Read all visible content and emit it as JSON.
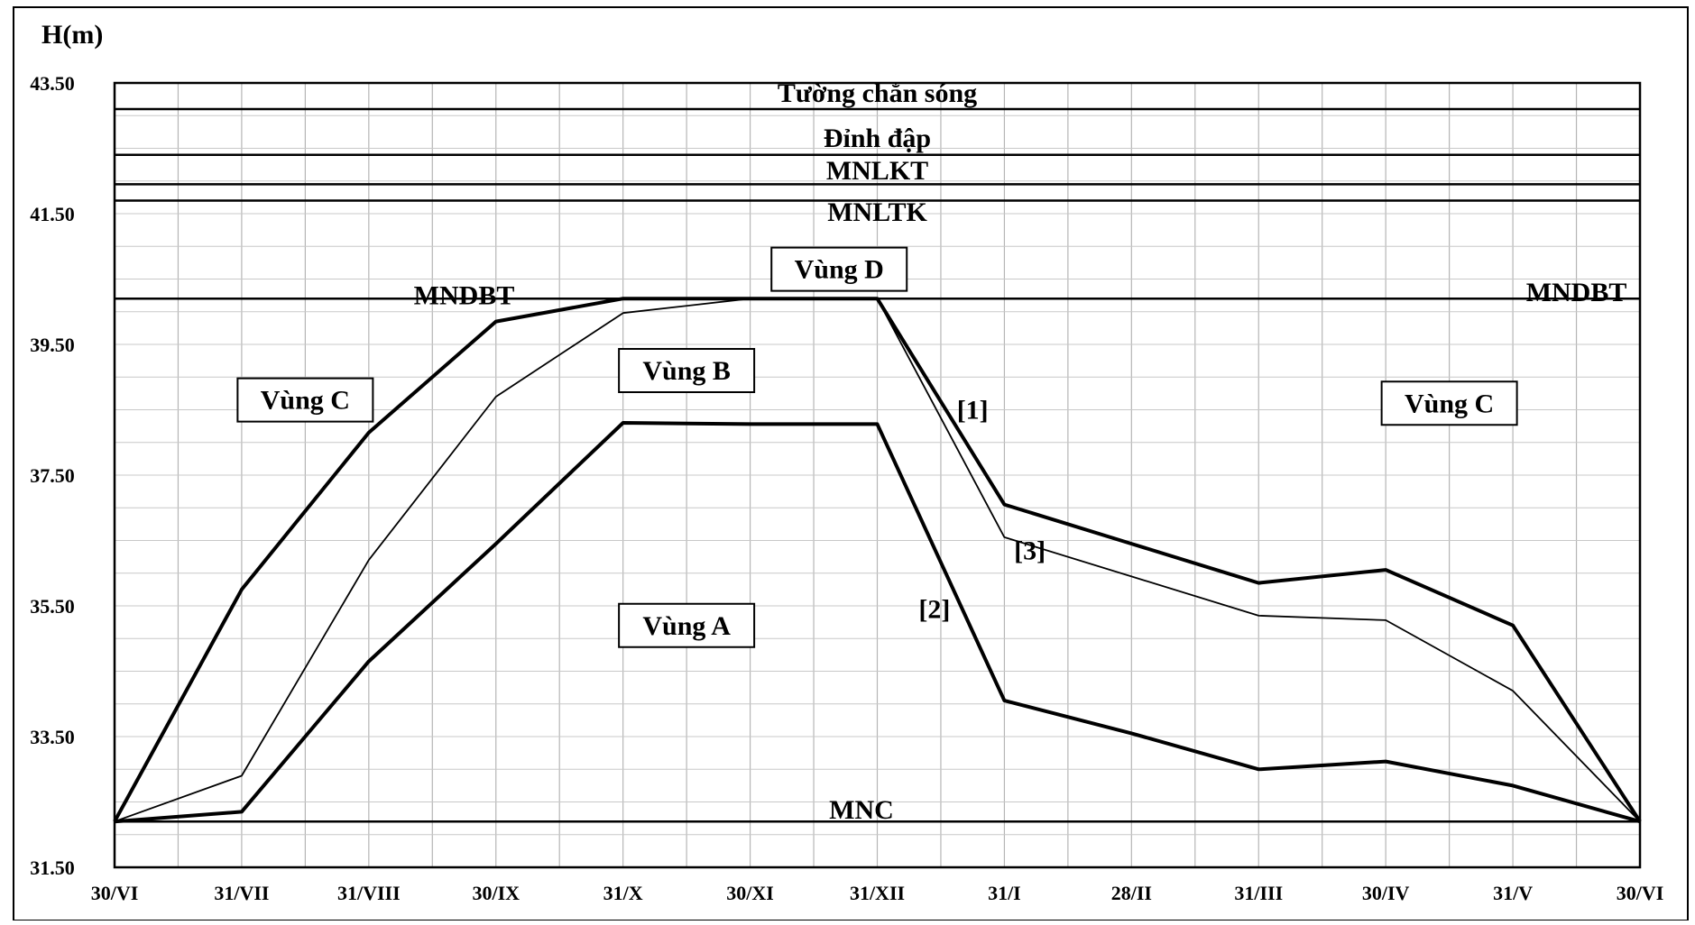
{
  "chart_data": {
    "type": "line",
    "title": "",
    "ylabel": "H(m)",
    "xlabel": "",
    "ylim": [
      31.5,
      43.5
    ],
    "yticks": [
      "43.50",
      "41.50",
      "39.50",
      "37.50",
      "35.50",
      "33.50",
      "31.50"
    ],
    "ytick_values": [
      43.5,
      41.5,
      39.5,
      37.5,
      35.5,
      33.5,
      31.5
    ],
    "categories": [
      "30/VI",
      "31/VII",
      "31/VIII",
      "30/IX",
      "31/X",
      "30/XI",
      "31/XII",
      "31/I",
      "28/II",
      "31/III",
      "30/IV",
      "31/V",
      "30/VI"
    ],
    "grid": true,
    "levels": [
      {
        "label": "Tường chắn sóng",
        "value": 43.1
      },
      {
        "label": "Đỉnh đập",
        "value": 42.4
      },
      {
        "label": "MNLKT",
        "value": 41.95
      },
      {
        "label": "MNLTK",
        "value": 41.7
      },
      {
        "label": "MNDBT",
        "value": 40.2
      },
      {
        "label": "MNC",
        "value": 32.2
      }
    ],
    "series": [
      {
        "name": "[1]",
        "style": "thick",
        "values": [
          32.2,
          35.75,
          38.15,
          39.85,
          40.2,
          40.2,
          40.2,
          37.05,
          36.45,
          35.85,
          36.05,
          35.2,
          32.2
        ]
      },
      {
        "name": "[3]",
        "style": "thin",
        "values": [
          32.2,
          32.9,
          36.2,
          38.7,
          39.98,
          40.2,
          40.2,
          36.55,
          35.95,
          35.35,
          35.28,
          34.2,
          32.2
        ]
      },
      {
        "name": "[2]",
        "style": "thick",
        "values": [
          32.2,
          32.35,
          34.65,
          36.45,
          38.3,
          38.28,
          38.28,
          34.05,
          33.55,
          33.0,
          33.12,
          32.75,
          32.2
        ]
      }
    ],
    "zones": [
      {
        "label": "Vùng C",
        "x": 1.5,
        "y": 38.65
      },
      {
        "label": "Vùng B",
        "x": 4.5,
        "y": 39.1
      },
      {
        "label": "Vùng D",
        "x": 5.7,
        "y": 40.65
      },
      {
        "label": "Vùng A",
        "x": 4.5,
        "y": 35.2
      },
      {
        "label": "Vùng C",
        "x": 10.5,
        "y": 38.6
      }
    ],
    "annotations": [
      {
        "text": "MNDBT",
        "x": 2.75,
        "y": 40.25
      },
      {
        "text": "MNDBT",
        "x": 11.5,
        "y": 40.3
      },
      {
        "text": "[1]",
        "x": 6.75,
        "y": 38.5
      },
      {
        "text": "[3]",
        "x": 7.2,
        "y": 36.35
      },
      {
        "text": "[2]",
        "x": 6.45,
        "y": 35.45
      }
    ]
  }
}
